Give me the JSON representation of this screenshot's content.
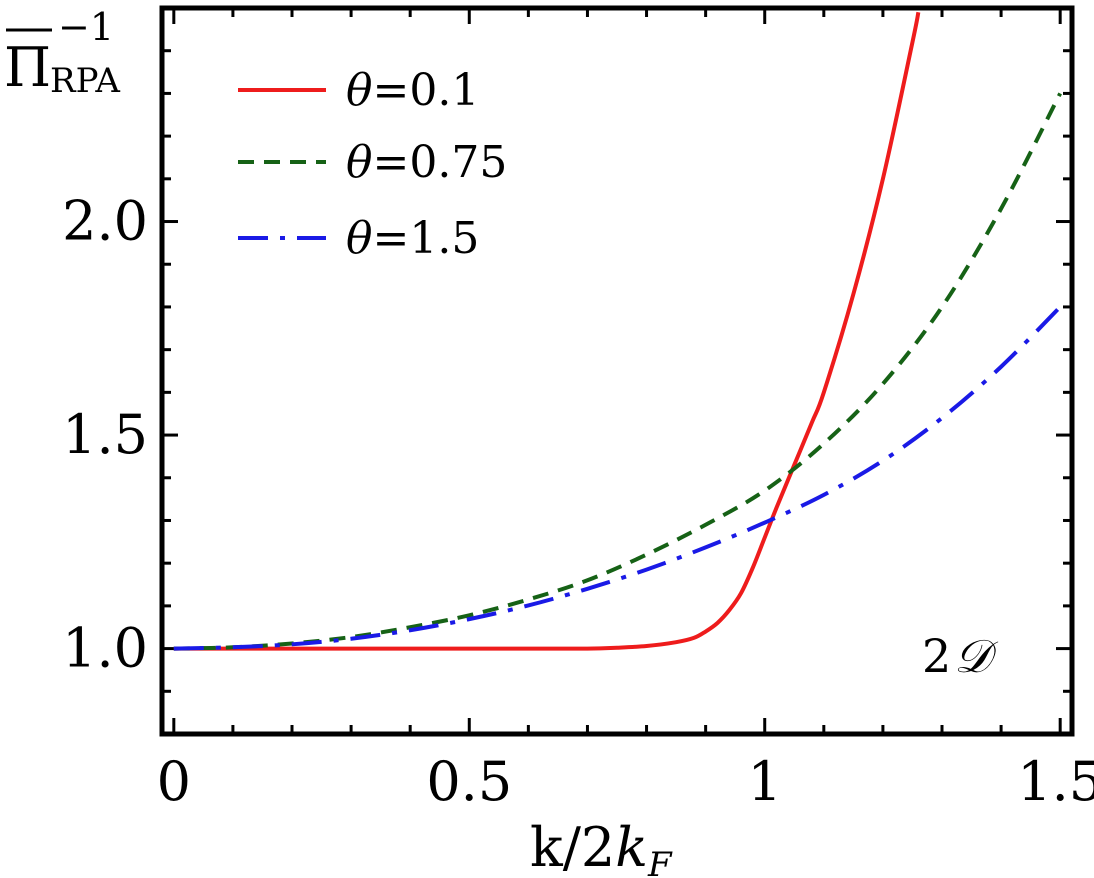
{
  "chart_data": {
    "type": "line",
    "title": "",
    "xlabel_main": "k/2",
    "xlabel_var": "k",
    "xlabel_sub": "F",
    "ylabel_main": "Π",
    "ylabel_sub": "RPA",
    "ylabel_sup": "−1",
    "annotation_num": "2",
    "annotation_sym": "𝒟",
    "xlim": [
      -0.02,
      1.52
    ],
    "ylim": [
      0.8,
      2.5
    ],
    "x_ticks": [
      0,
      0.5,
      1,
      1.5
    ],
    "x_tick_labels": [
      "0",
      "0.5",
      "1",
      "1.5"
    ],
    "y_ticks": [
      1.0,
      1.5,
      2.0
    ],
    "y_tick_labels": [
      "1.0",
      "1.5",
      "2.0"
    ],
    "legend_position": "top-left",
    "series": [
      {
        "name": "θ=0.1",
        "legend_var": "θ",
        "legend_value": "=0.1",
        "color": "#ee1c1c",
        "dash": "solid",
        "x": [
          0,
          0.1,
          0.2,
          0.3,
          0.4,
          0.5,
          0.6,
          0.7,
          0.75,
          0.8,
          0.85,
          0.88,
          0.9,
          0.92,
          0.94,
          0.96,
          0.98,
          1.0,
          1.02,
          1.05,
          1.08,
          1.1,
          1.15,
          1.2,
          1.25,
          1.26
        ],
        "y": [
          1.0,
          1.0,
          1.0,
          1.0,
          1.0,
          1.0,
          1.0,
          1.0,
          1.002,
          1.006,
          1.015,
          1.025,
          1.04,
          1.06,
          1.09,
          1.13,
          1.19,
          1.26,
          1.33,
          1.43,
          1.53,
          1.6,
          1.83,
          2.1,
          2.42,
          2.49
        ]
      },
      {
        "name": "θ=0.75",
        "legend_var": "θ",
        "legend_value": "=0.75",
        "color": "#166216",
        "dash": "dashed",
        "x": [
          0,
          0.1,
          0.2,
          0.3,
          0.4,
          0.5,
          0.6,
          0.7,
          0.8,
          0.9,
          1.0,
          1.1,
          1.2,
          1.3,
          1.4,
          1.5
        ],
        "y": [
          1.0,
          1.003,
          1.012,
          1.027,
          1.05,
          1.078,
          1.115,
          1.16,
          1.22,
          1.29,
          1.37,
          1.48,
          1.62,
          1.8,
          2.03,
          2.3
        ]
      },
      {
        "name": "θ=1.5",
        "legend_var": "θ",
        "legend_value": "=1.5",
        "color": "#1a1ae6",
        "dash": "dashdot",
        "x": [
          0,
          0.1,
          0.2,
          0.3,
          0.4,
          0.5,
          0.6,
          0.7,
          0.8,
          0.9,
          1.0,
          1.1,
          1.2,
          1.3,
          1.4,
          1.5
        ],
        "y": [
          1.0,
          1.003,
          1.01,
          1.023,
          1.043,
          1.069,
          1.101,
          1.14,
          1.185,
          1.237,
          1.295,
          1.36,
          1.44,
          1.54,
          1.66,
          1.8
        ]
      }
    ]
  }
}
